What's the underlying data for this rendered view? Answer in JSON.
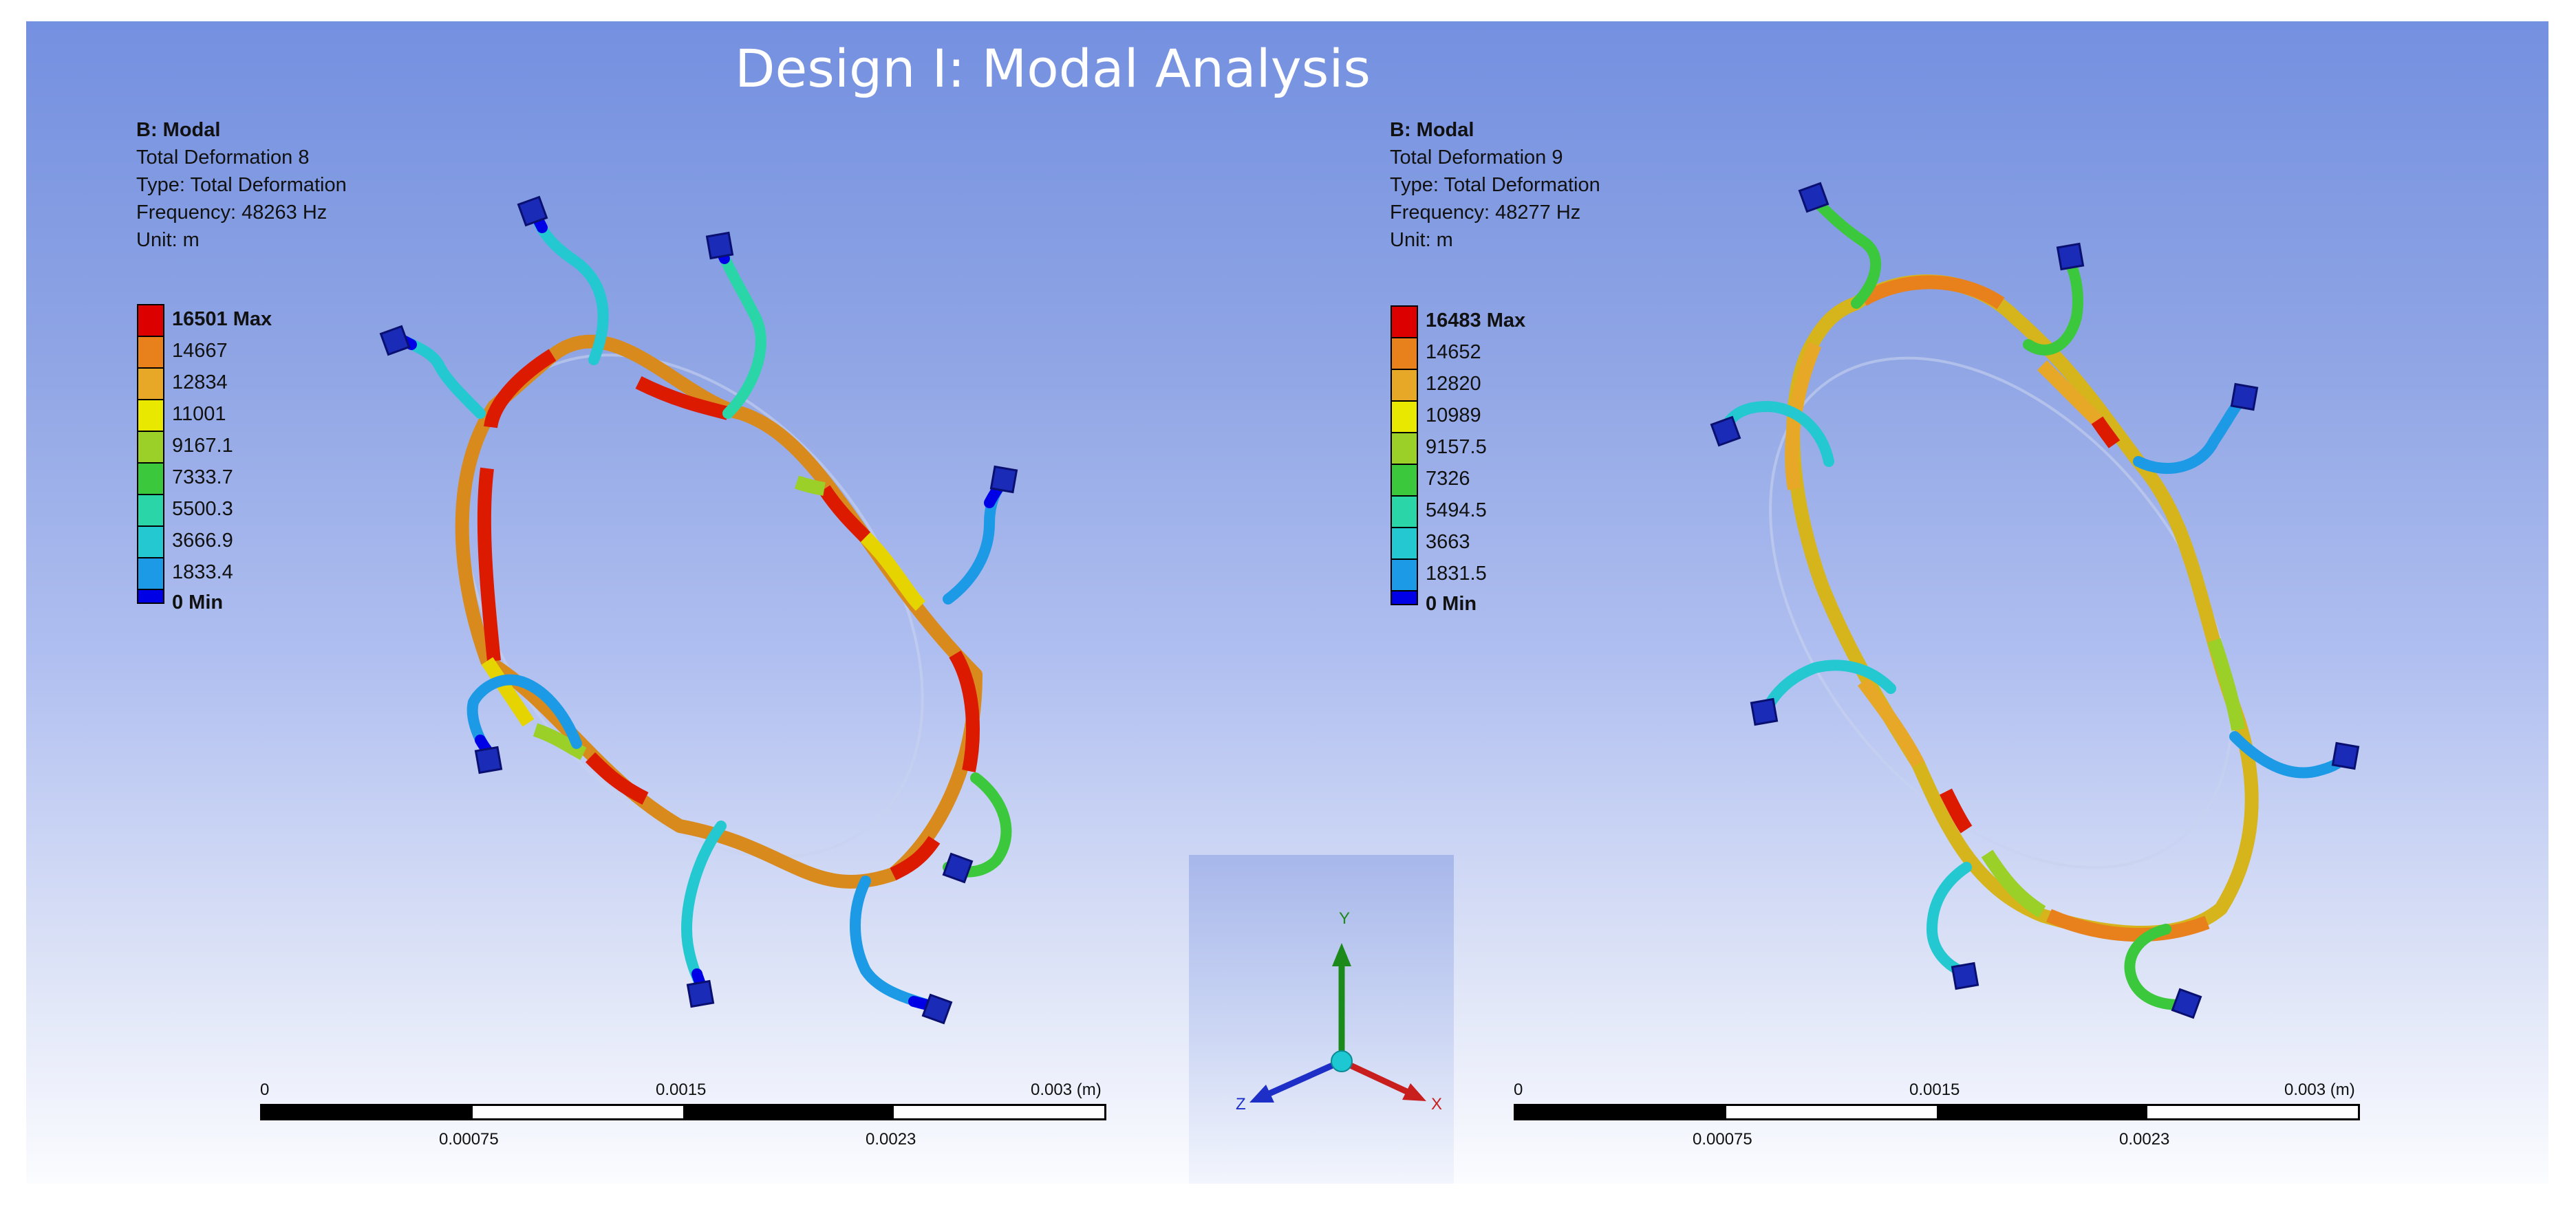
{
  "page": {
    "title": "Design I: Modal Analysis"
  },
  "colors": {
    "legend": [
      "#dc0000",
      "#e8801c",
      "#e6a826",
      "#e8e800",
      "#9ad028",
      "#3cc83c",
      "#2ad6a8",
      "#24c8d0",
      "#1c9ae6",
      "#0000e6"
    ]
  },
  "left": {
    "system": "B: Modal",
    "result": "Total Deformation 8",
    "type": "Type: Total Deformation",
    "frequency": "Frequency: 48263 Hz",
    "unit": "Unit: m",
    "levels": [
      "16501 Max",
      "14667",
      "12834",
      "11001",
      "9167.1",
      "7333.7",
      "5500.3",
      "3666.9",
      "1833.4",
      "0 Min"
    ],
    "scale": {
      "start": "0",
      "mid": "0.0015",
      "end": "0.003 (m)",
      "q1": "0.00075",
      "q3": "0.0023"
    }
  },
  "right": {
    "system": "B: Modal",
    "result": "Total Deformation 9",
    "type": "Type: Total Deformation",
    "frequency": "Frequency: 48277 Hz",
    "unit": "Unit: m",
    "levels": [
      "16483 Max",
      "14652",
      "12820",
      "10989",
      "9157.5",
      "7326",
      "5494.5",
      "3663",
      "1831.5",
      "0 Min"
    ],
    "scale": {
      "start": "0",
      "mid": "0.0015",
      "end": "0.003 (m)",
      "q1": "0.00075",
      "q3": "0.0023"
    }
  },
  "triad": {
    "y": "Y",
    "x": "X",
    "z": "Z"
  }
}
